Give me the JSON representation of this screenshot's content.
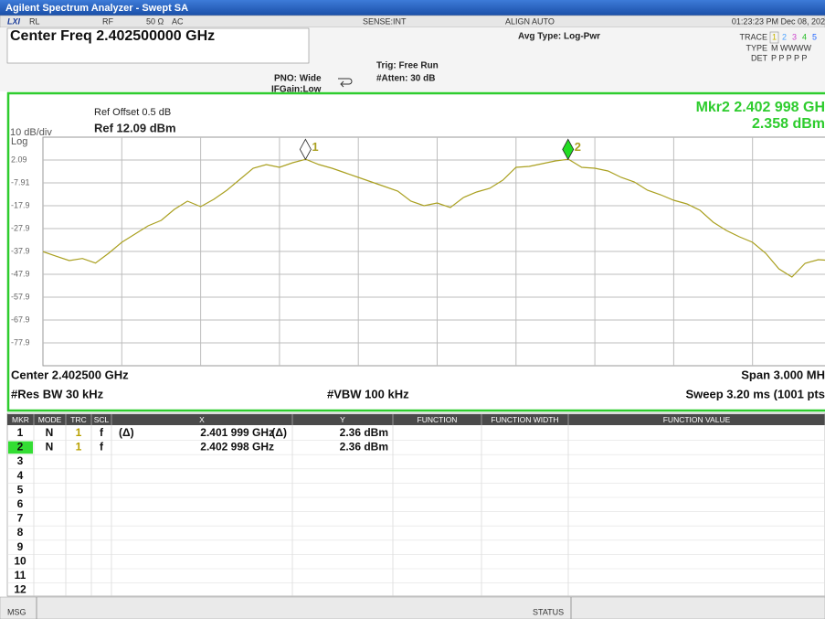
{
  "window": {
    "title": "Agilent Spectrum Analyzer - Swept SA"
  },
  "status_row": {
    "logo": "LXI",
    "rl": "RL",
    "rf": "RF",
    "impedance": "50 Ω",
    "coupling": "AC",
    "sense": "SENSE:INT",
    "align": "ALIGN AUTO",
    "clock": "01:23:23 PM Dec 08, 202"
  },
  "header": {
    "center_freq": "Center Freq 2.402500000 GHz",
    "pno": "PNO: Wide",
    "ifgain": "IFGain:Low",
    "trig": "Trig: Free Run",
    "atten": "#Atten: 30 dB",
    "avg_type": "Avg Type: Log-Pwr",
    "trace_label": "TRACE",
    "trace_numbers": [
      "1",
      "2",
      "3",
      "4",
      "5"
    ],
    "type_label": "TYPE",
    "types": "M WWWW",
    "det_label": "DET",
    "dets": "P P P P P"
  },
  "display": {
    "ref_offset": "Ref Offset 0.5 dB",
    "ref_level": "Ref 12.09 dBm",
    "scale": "10 dB/div",
    "scale_type": "Log",
    "marker_readout": "Mkr2 2.402 998 GH",
    "marker_readout_value": "2.358 dBm",
    "center": "Center 2.402500 GHz",
    "span": "Span 3.000 MH",
    "res_bw": "#Res BW 30 kHz",
    "vbw": "#VBW 100 kHz",
    "sweep": "Sweep  3.20 ms (1001 pts"
  },
  "chart_data": {
    "type": "line",
    "xlim": [
      2.401,
      2.404
    ],
    "ylim": [
      -87.91,
      12.09
    ],
    "yticks": [
      2.09,
      -7.91,
      -17.9,
      -27.9,
      -37.9,
      -47.9,
      -57.9,
      -67.9,
      -77.9
    ],
    "xgrid_divisions": 10,
    "grid": true,
    "series": [
      {
        "name": "Trace 1",
        "color": "#aaa020",
        "x": [
          2.401,
          2.40105,
          2.4011,
          2.40115,
          2.4012,
          2.40125,
          2.4013,
          2.40135,
          2.4014,
          2.40145,
          2.4015,
          2.40155,
          2.4016,
          2.40165,
          2.4017,
          2.40175,
          2.4018,
          2.40185,
          2.4019,
          2.40195,
          2.402,
          2.40205,
          2.4021,
          2.40215,
          2.4022,
          2.40225,
          2.4023,
          2.40235,
          2.4024,
          2.40245,
          2.4025,
          2.40255,
          2.4026,
          2.40265,
          2.4027,
          2.40275,
          2.4028,
          2.40285,
          2.4029,
          2.40295,
          2.403,
          2.40305,
          2.4031,
          2.40315,
          2.4032,
          2.40325,
          2.4033,
          2.40335,
          2.4034,
          2.40345,
          2.4035,
          2.40355,
          2.4036,
          2.40365,
          2.4037,
          2.40375,
          2.4038,
          2.40385,
          2.4039,
          2.40395,
          2.404
        ],
        "values": [
          -38,
          -40,
          -41.9,
          -41,
          -43,
          -38.7,
          -33.9,
          -30.3,
          -26.7,
          -24.3,
          -19.5,
          -15.9,
          -18.3,
          -15.1,
          -11.1,
          -6.3,
          -1.5,
          0.1,
          -1.1,
          0.9,
          2.4,
          0.1,
          -1.5,
          -3.5,
          -5.5,
          -7.5,
          -9.5,
          -11.5,
          -15.9,
          -17.9,
          -16.7,
          -18.7,
          -14.3,
          -11.9,
          -10.3,
          -6.7,
          -1.1,
          -0.7,
          0.5,
          1.7,
          2.4,
          -1.1,
          -1.5,
          -2.7,
          -5.5,
          -7.5,
          -11.1,
          -13.1,
          -15.5,
          -17.1,
          -19.9,
          -25.1,
          -28.7,
          -31.5,
          -33.9,
          -38.7,
          -45.5,
          -49.1,
          -43.1,
          -41.5,
          -41.9
        ]
      }
    ],
    "markers": [
      {
        "label": "1",
        "x": 2.401999,
        "y": 2.36,
        "color": "#ffffff"
      },
      {
        "label": "2",
        "x": 2.402998,
        "y": 2.36,
        "color": "#22dd22"
      }
    ]
  },
  "marker_table": {
    "columns": [
      "MKR",
      "MODE",
      "TRC",
      "SCL",
      "X",
      "Y",
      "FUNCTION",
      "FUNCTION WIDTH",
      "FUNCTION VALUE"
    ],
    "rows": [
      {
        "mkr": "1",
        "mode": "N",
        "trc": "1",
        "scl": "f",
        "x_delta": "(Δ)",
        "x": "2.401 999 GHz",
        "y_delta": "(Δ)",
        "y": "2.36 dBm"
      },
      {
        "mkr": "2",
        "mode": "N",
        "trc": "1",
        "scl": "f",
        "x": "2.402 998 GHz",
        "y": "2.36 dBm"
      },
      {
        "mkr": "3"
      },
      {
        "mkr": "4"
      },
      {
        "mkr": "5"
      },
      {
        "mkr": "6"
      },
      {
        "mkr": "7"
      },
      {
        "mkr": "8"
      },
      {
        "mkr": "9"
      },
      {
        "mkr": "10"
      },
      {
        "mkr": "11"
      },
      {
        "mkr": "12"
      }
    ]
  },
  "bottom_bar": {
    "msg": "MSG",
    "status": "STATUS"
  }
}
